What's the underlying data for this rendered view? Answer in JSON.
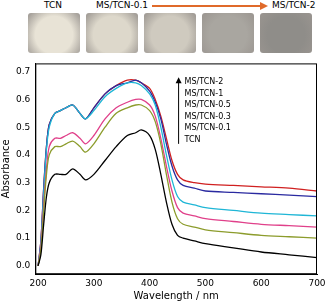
{
  "chart_data": {
    "type": "line",
    "annotations": [
      "TCN",
      "MS/TCN-0.1",
      "MS/TCN-2"
    ],
    "x_label": "Wavelength / nm",
    "y_label": "Absorbance",
    "x": [
      200,
      205,
      210,
      215,
      220,
      230,
      240,
      250,
      262,
      275,
      285,
      300,
      320,
      340,
      360,
      375,
      385,
      400,
      410,
      420,
      430,
      440,
      450,
      460,
      480,
      500,
      550,
      600,
      650,
      700
    ],
    "series": [
      {
        "name": "TCN",
        "color": "#000000",
        "values": [
          0.0,
          0.04,
          0.15,
          0.25,
          0.3,
          0.33,
          0.33,
          0.33,
          0.35,
          0.33,
          0.31,
          0.33,
          0.38,
          0.43,
          0.47,
          0.48,
          0.49,
          0.47,
          0.42,
          0.33,
          0.23,
          0.15,
          0.11,
          0.1,
          0.09,
          0.08,
          0.065,
          0.05,
          0.04,
          0.03
        ]
      },
      {
        "name": "MS/TCN-0.1",
        "color": "#8c9c2c",
        "values": [
          0.0,
          0.06,
          0.2,
          0.33,
          0.4,
          0.43,
          0.43,
          0.44,
          0.45,
          0.43,
          0.41,
          0.44,
          0.5,
          0.55,
          0.57,
          0.58,
          0.58,
          0.56,
          0.52,
          0.44,
          0.33,
          0.23,
          0.17,
          0.15,
          0.14,
          0.13,
          0.12,
          0.11,
          0.105,
          0.1
        ]
      },
      {
        "name": "MS/TCN-0.3",
        "color": "#e0408a",
        "values": [
          0.0,
          0.07,
          0.22,
          0.35,
          0.43,
          0.46,
          0.46,
          0.47,
          0.48,
          0.46,
          0.44,
          0.47,
          0.53,
          0.57,
          0.59,
          0.6,
          0.6,
          0.58,
          0.54,
          0.46,
          0.36,
          0.27,
          0.21,
          0.19,
          0.18,
          0.17,
          0.16,
          0.15,
          0.145,
          0.14
        ]
      },
      {
        "name": "MS/TCN-0.5",
        "color": "#1fb6d6",
        "values": [
          0.0,
          0.08,
          0.26,
          0.42,
          0.5,
          0.55,
          0.56,
          0.57,
          0.58,
          0.55,
          0.53,
          0.56,
          0.61,
          0.64,
          0.66,
          0.66,
          0.65,
          0.62,
          0.58,
          0.5,
          0.4,
          0.31,
          0.25,
          0.23,
          0.22,
          0.21,
          0.2,
          0.19,
          0.185,
          0.18
        ]
      },
      {
        "name": "MS/TCN-1",
        "color": "#2a2aa0",
        "values": [
          0.0,
          0.09,
          0.28,
          0.43,
          0.51,
          0.55,
          0.56,
          0.57,
          0.58,
          0.55,
          0.53,
          0.57,
          0.62,
          0.65,
          0.66,
          0.67,
          0.66,
          0.63,
          0.59,
          0.53,
          0.44,
          0.36,
          0.31,
          0.29,
          0.28,
          0.27,
          0.265,
          0.26,
          0.255,
          0.25
        ]
      },
      {
        "name": "MS/TCN-2",
        "color": "#d02020",
        "values": [
          0.0,
          0.09,
          0.28,
          0.43,
          0.51,
          0.55,
          0.56,
          0.57,
          0.58,
          0.55,
          0.53,
          0.57,
          0.62,
          0.65,
          0.67,
          0.67,
          0.66,
          0.64,
          0.6,
          0.54,
          0.46,
          0.38,
          0.33,
          0.31,
          0.3,
          0.295,
          0.29,
          0.285,
          0.28,
          0.27
        ]
      }
    ],
    "xlim": [
      195,
      700
    ],
    "xticks": [
      200,
      300,
      400,
      500,
      600,
      700
    ],
    "ylim": [
      -0.03,
      0.73
    ],
    "yticks": [
      {
        "value": 0,
        "label": "0.0"
      },
      0.1,
      0.2,
      0.3,
      0.4,
      0.5,
      0.6,
      0.7
    ],
    "legend": "upper right",
    "grid": false
  }
}
